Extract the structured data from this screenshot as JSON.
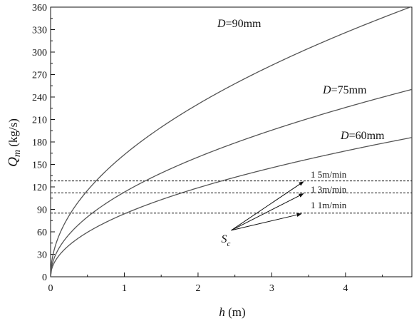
{
  "chart_data": {
    "type": "line",
    "title": "",
    "xlabel": {
      "var": "h",
      "unit": " (m)"
    },
    "ylabel": {
      "var": "Q",
      "sub": "m",
      "unit": " (kg/s)"
    },
    "xlim": [
      0,
      4.9
    ],
    "ylim": [
      0,
      360
    ],
    "x_ticks": [
      "0",
      "1",
      "2",
      "3",
      "4"
    ],
    "y_ticks": [
      "0",
      "30",
      "60",
      "90",
      "120",
      "150",
      "180",
      "210",
      "240",
      "270",
      "300",
      "330",
      "360"
    ],
    "grid": false,
    "series": [
      {
        "name": "D=90mm",
        "label_var": "D",
        "label_rest": "=90mm",
        "coef": 163,
        "exponent": 0.5,
        "x": [
          0,
          0.1,
          0.25,
          0.5,
          1.0,
          1.5,
          2.0,
          2.5,
          3.0,
          3.5,
          3.8
        ],
        "y": [
          0,
          52,
          82,
          115,
          163,
          200,
          231,
          258,
          282,
          305,
          316
        ]
      },
      {
        "name": "D=75mm",
        "label_var": "D",
        "label_rest": "=75mm",
        "coef": 113,
        "exponent": 0.5,
        "x": [
          0,
          0.25,
          0.5,
          1.0,
          1.5,
          2.0,
          2.5,
          3.0,
          3.5,
          4.0,
          4.9
        ],
        "y": [
          0,
          57,
          80,
          113,
          138,
          160,
          179,
          196,
          211,
          226,
          250
        ]
      },
      {
        "name": "D=60mm",
        "label_var": "D",
        "label_rest": "=60mm",
        "coef": 84,
        "exponent": 0.5,
        "x": [
          0,
          0.25,
          0.5,
          1.0,
          1.5,
          2.0,
          2.5,
          3.0,
          3.5,
          4.0,
          4.9
        ],
        "y": [
          0,
          42,
          59,
          84,
          103,
          119,
          133,
          146,
          157,
          168,
          186
        ]
      }
    ],
    "reference_lines": [
      {
        "label": "1 5m/min",
        "y": 128
      },
      {
        "label": "1 3m/min",
        "y": 112
      },
      {
        "label": "1 1m/min",
        "y": 85
      }
    ],
    "point": {
      "label": "S",
      "sub": "c",
      "x": 2.45,
      "y": 62
    },
    "arrow_targets": [
      {
        "x": 3.43,
        "y": 127
      },
      {
        "x": 3.43,
        "y": 111
      },
      {
        "x": 3.4,
        "y": 84
      }
    ]
  }
}
